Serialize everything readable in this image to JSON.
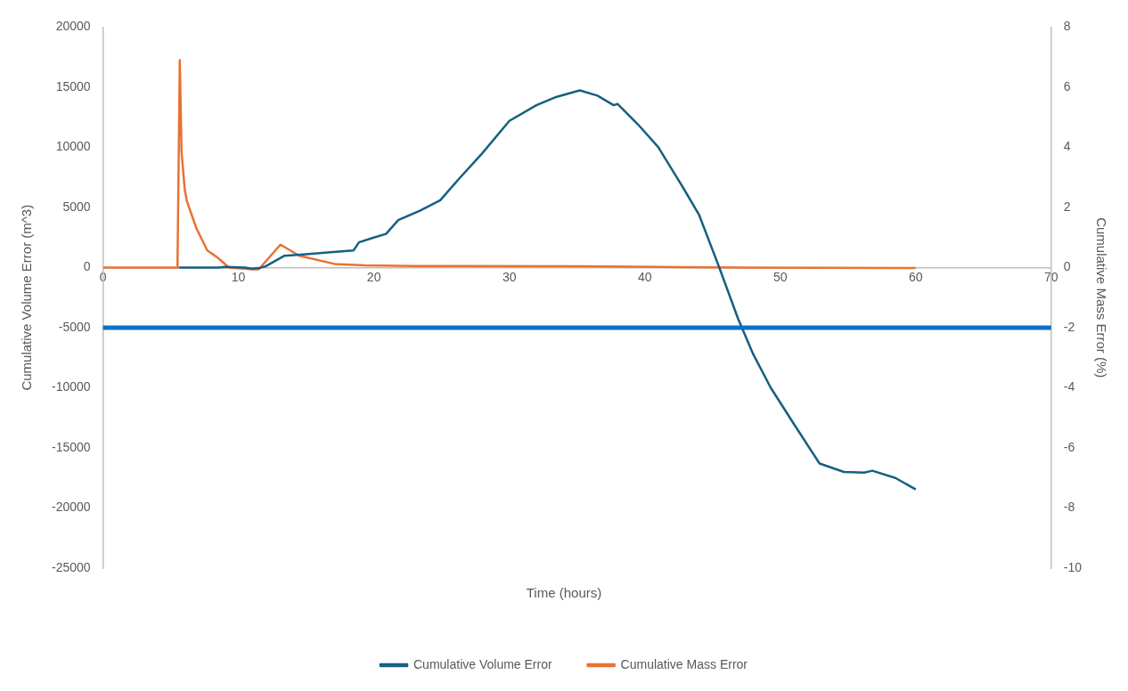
{
  "chart_data": {
    "type": "line",
    "xlabel": "Time (hours)",
    "ylabel": "Cumulative Volume Error (m^3)",
    "y2label": "Cumulative Mass Error (%)",
    "xlim": [
      0,
      70
    ],
    "xticks": [
      0,
      10,
      20,
      30,
      40,
      50,
      60,
      70
    ],
    "ylim": [
      -25000,
      20000
    ],
    "yticks": [
      -25000,
      -20000,
      -15000,
      -10000,
      -5000,
      0,
      5000,
      10000,
      15000,
      20000
    ],
    "y2lim": [
      -10,
      8
    ],
    "y2ticks": [
      -10,
      -8,
      -6,
      -4,
      -2,
      0,
      2,
      4,
      6,
      8
    ],
    "grid": false,
    "legend": "bottom",
    "marker": "none",
    "line_style": "solid",
    "ref_lines": [
      {
        "axis": "y",
        "value": -5000,
        "color": "#0a72c8"
      }
    ],
    "series": [
      {
        "name": "Cumulative Volume Error",
        "color": "#156082",
        "x": [
          5.6,
          8.5,
          9,
          10.5,
          11,
          11.5,
          12,
          13.4,
          15,
          17,
          18.5,
          18.9,
          20,
          20.9,
          21.8,
          23.4,
          24.9,
          26.3,
          28,
          30,
          32,
          33.5,
          35.2,
          36.5,
          37.7,
          38,
          39.5,
          41,
          42.8,
          44,
          45.5,
          46.9,
          48,
          49.3,
          51,
          52.9,
          54.7,
          56.2,
          56.8,
          58.5,
          60
        ],
        "values": [
          0,
          0,
          50,
          0,
          -100,
          -50,
          100,
          980,
          1100,
          1300,
          1430,
          2100,
          2500,
          2800,
          3950,
          4730,
          5600,
          7400,
          9500,
          12200,
          13500,
          14200,
          14730,
          14300,
          13500,
          13600,
          11900,
          10000,
          6700,
          4400,
          0,
          -4300,
          -7200,
          -10000,
          -13000,
          -16300,
          -17000,
          -17050,
          -16900,
          -17500,
          -18450
        ]
      },
      {
        "name": "Cumulative Mass Error",
        "color": "#e97132",
        "axis": "y2",
        "x": [
          0,
          5.5,
          5.67,
          5.8,
          6.04,
          6.2,
          6.9,
          7.7,
          8.4,
          8.8,
          9.3,
          11.1,
          11.5,
          13.1,
          14.5,
          17.1,
          19.3,
          23,
          35,
          41,
          47,
          60
        ],
        "values": [
          0,
          0,
          6.9,
          3.85,
          2.58,
          2.2,
          1.3,
          0.57,
          0.35,
          0.2,
          0,
          -0.06,
          -0.06,
          0.76,
          0.39,
          0.12,
          0.07,
          0.05,
          0.04,
          0.02,
          0,
          -0.02
        ]
      }
    ]
  }
}
